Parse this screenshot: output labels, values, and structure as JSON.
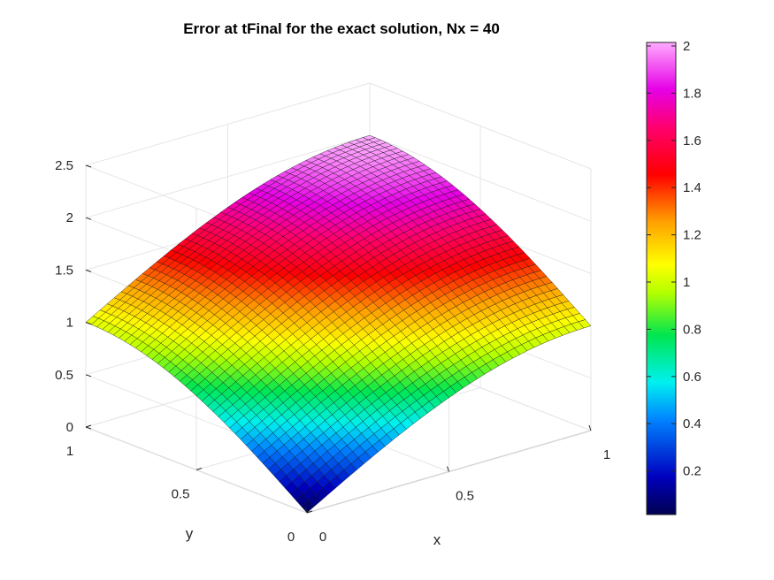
{
  "chart_data": {
    "type": "surface3d",
    "title": "Error at tFinal for the exact solution, Nx = 40",
    "xlabel": "x",
    "ylabel": "y",
    "zlabel": "",
    "xlim": [
      0,
      1
    ],
    "ylim": [
      0,
      1
    ],
    "zlim": [
      0,
      2.5
    ],
    "xticks": [
      "0",
      "0.5",
      "1"
    ],
    "yticks": [
      "0",
      "0.5",
      "1"
    ],
    "zticks": [
      "0",
      "0.5",
      "1",
      "1.5",
      "2",
      "2.5"
    ],
    "grid": true,
    "colormap": "hsv-like (navy-blue-cyan-green-yellow-orange-red-magenta-pink)",
    "colorbar": {
      "placement": "right",
      "range": [
        0,
        2
      ],
      "ticks": [
        "0.2",
        "0.4",
        "0.6",
        "0.8",
        "1",
        "1.2",
        "1.4",
        "1.6",
        "1.8",
        "2"
      ]
    },
    "corner_values": [
      {
        "x": 0,
        "y": 0,
        "z": 0
      },
      {
        "x": 1,
        "y": 0,
        "z": 1
      },
      {
        "x": 0,
        "y": 1,
        "z": 1
      },
      {
        "x": 1,
        "y": 1,
        "z": 2
      }
    ],
    "surface_formula": "z ≈ sin(pi*x/2) + sin(pi*y/2)",
    "grid_size": 41
  }
}
